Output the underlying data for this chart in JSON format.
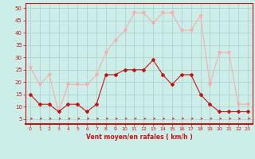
{
  "x": [
    0,
    1,
    2,
    3,
    4,
    5,
    6,
    7,
    8,
    9,
    10,
    11,
    12,
    13,
    14,
    15,
    16,
    17,
    18,
    19,
    20,
    21,
    22,
    23
  ],
  "wind_avg": [
    15,
    11,
    11,
    8,
    11,
    11,
    8,
    11,
    23,
    23,
    25,
    25,
    25,
    29,
    23,
    19,
    23,
    23,
    15,
    11,
    8,
    8,
    8,
    8
  ],
  "wind_gust": [
    26,
    19,
    23,
    8,
    19,
    19,
    19,
    23,
    32,
    37,
    41,
    48,
    48,
    44,
    48,
    48,
    41,
    41,
    47,
    19,
    32,
    32,
    11,
    11
  ],
  "xlabel": "Vent moyen/en rafales ( km/h )",
  "yticks": [
    5,
    10,
    15,
    20,
    25,
    30,
    35,
    40,
    45,
    50
  ],
  "xticks": [
    0,
    1,
    2,
    3,
    4,
    5,
    6,
    7,
    8,
    9,
    10,
    11,
    12,
    13,
    14,
    15,
    16,
    17,
    18,
    19,
    20,
    21,
    22,
    23
  ],
  "bg_color": "#cceee8",
  "grid_color": "#aacccc",
  "line_avg_color": "#cc1111",
  "line_gust_color": "#ffaaaa",
  "axis_color": "#cc1111",
  "tick_color": "#cc1111",
  "xlabel_color": "#cc1111",
  "ylim": [
    3,
    52
  ],
  "xlim": [
    -0.5,
    23.5
  ]
}
